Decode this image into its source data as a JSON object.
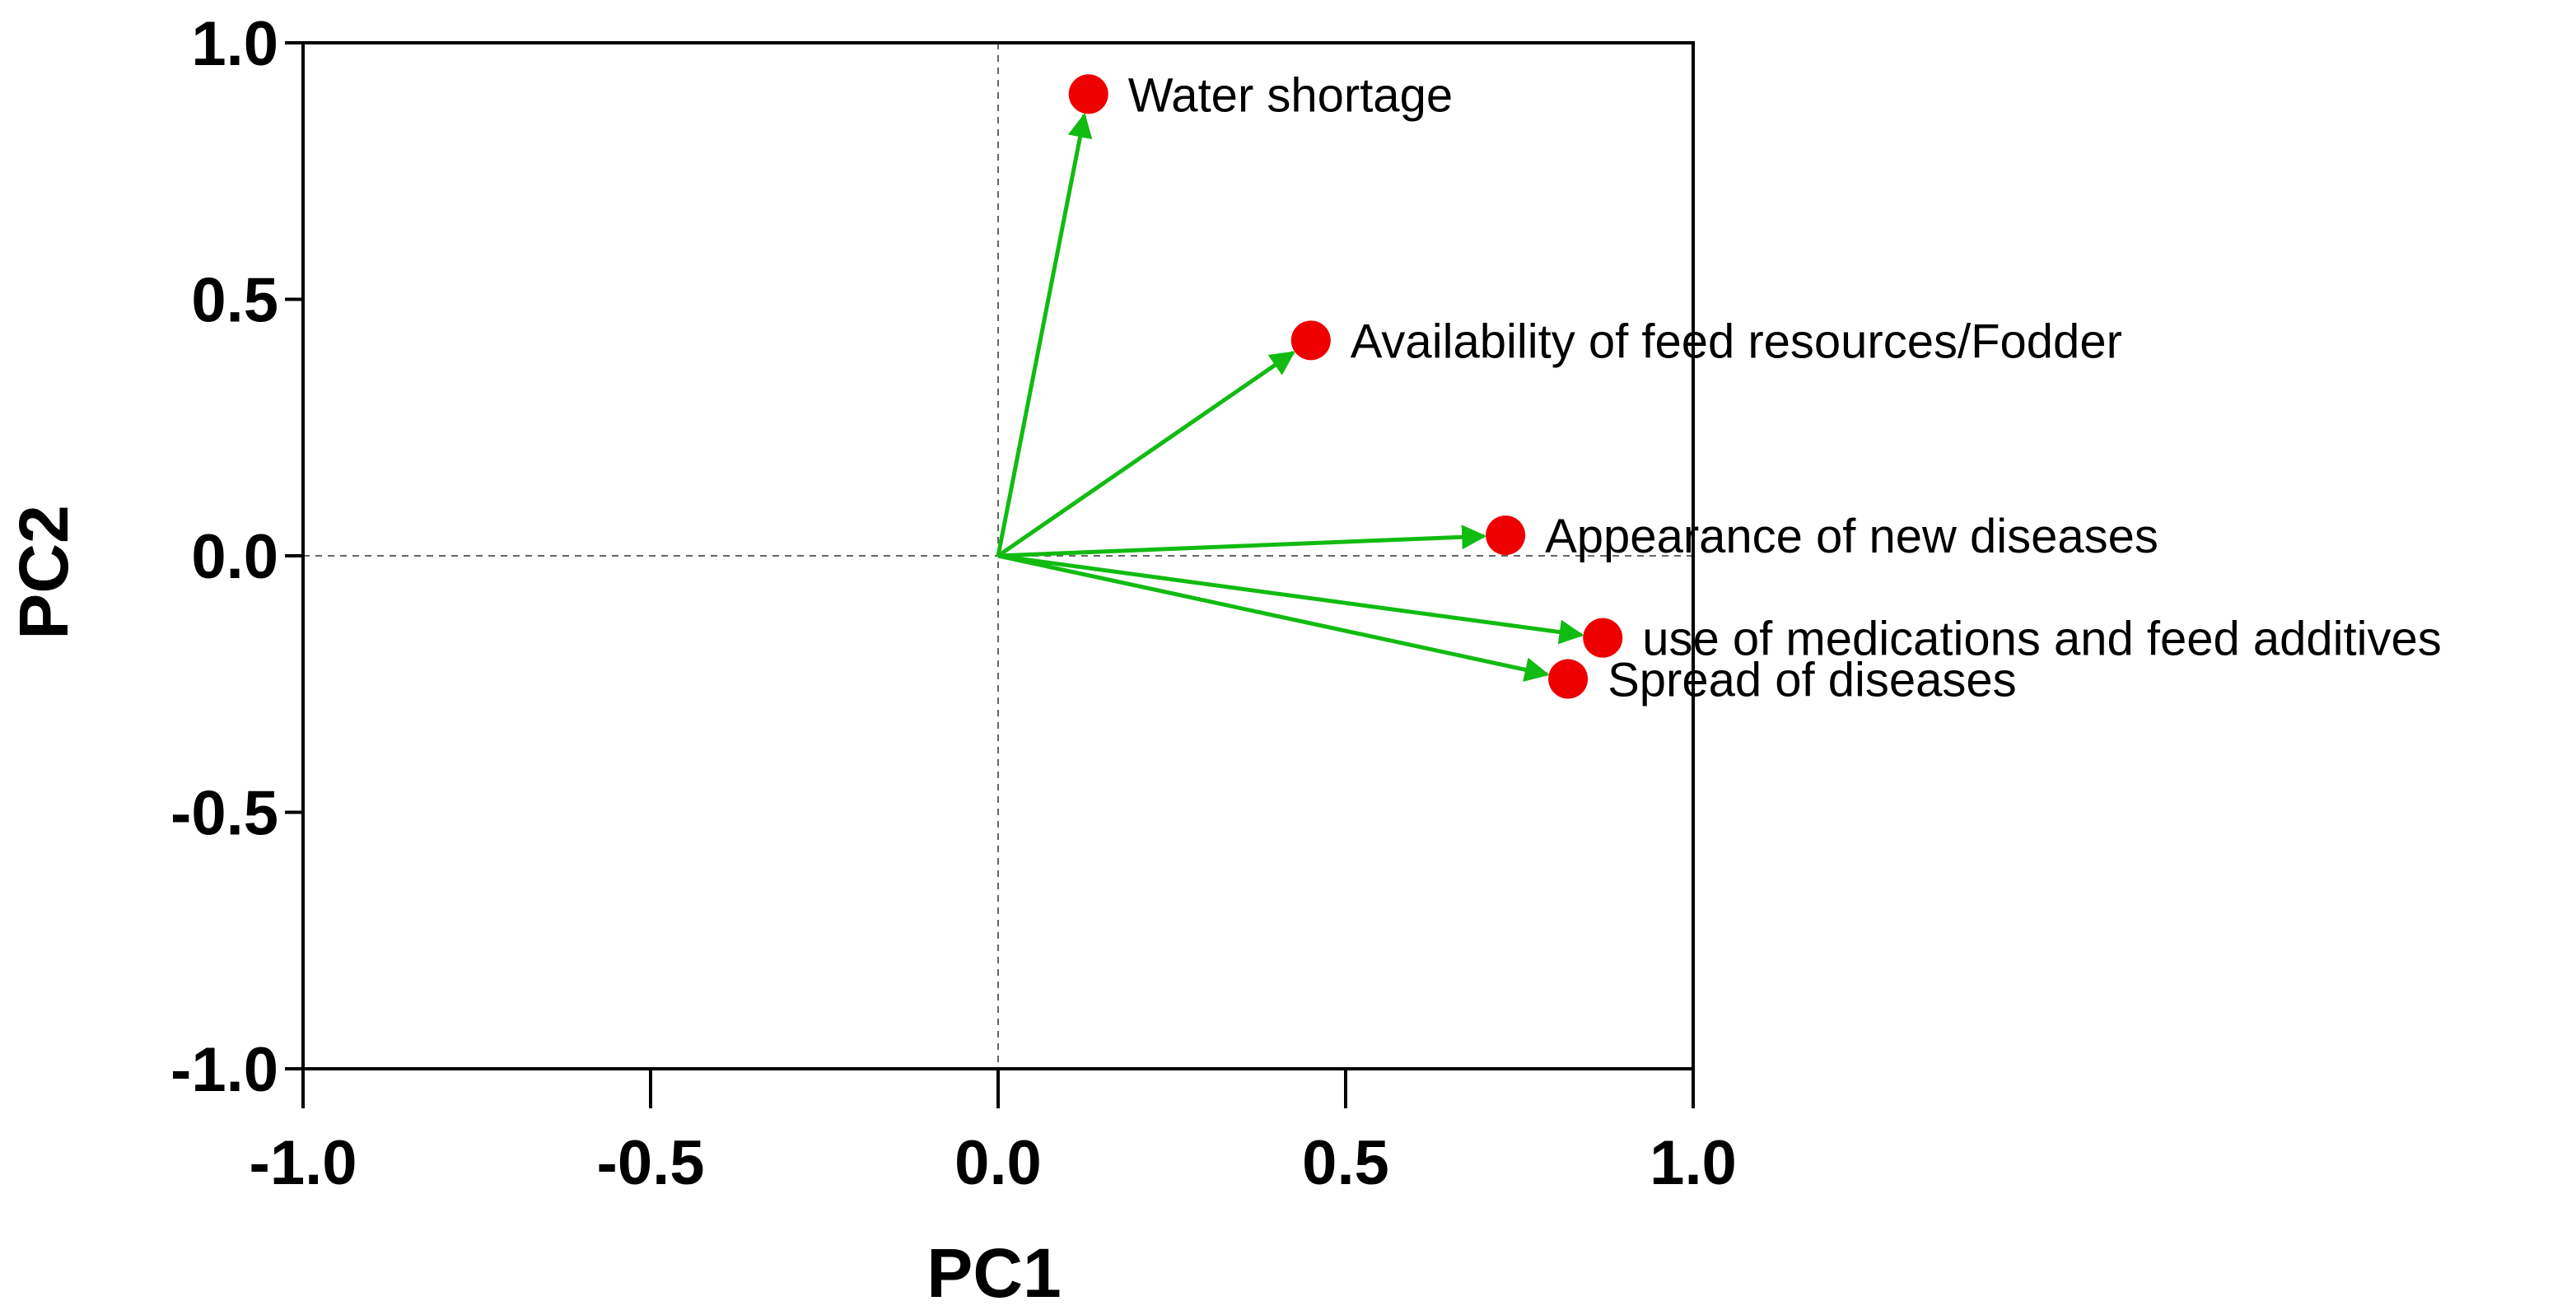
{
  "chart_data": {
    "type": "scatter",
    "subtype": "pca-loading-biplot",
    "title": "",
    "xlabel": "PC1",
    "ylabel": "PC2",
    "xlim": [
      -1.0,
      1.0
    ],
    "ylim": [
      -1.0,
      1.0
    ],
    "xticks": [
      "-1.0",
      "-0.5",
      "0.0",
      "0.5",
      "1.0"
    ],
    "yticks": [
      "1.0",
      "0.5",
      "0.0",
      "-0.5",
      "-1.0"
    ],
    "xtick_values": [
      -1.0,
      -0.5,
      0.0,
      0.5,
      1.0
    ],
    "ytick_values": [
      1.0,
      0.5,
      0.0,
      -0.5,
      -1.0
    ],
    "reference_lines": {
      "x": 0.0,
      "y": 0.0,
      "style": "dashed"
    },
    "grid": false,
    "points": [
      {
        "label": "Water shortage",
        "x": 0.13,
        "y": 0.9
      },
      {
        "label": "Availability of feed resources/Fodder",
        "x": 0.45,
        "y": 0.42
      },
      {
        "label": "Appearance of new diseases",
        "x": 0.73,
        "y": 0.04
      },
      {
        "label": "use of medications and feed additives",
        "x": 0.87,
        "y": -0.16
      },
      {
        "label": "Spread of diseases",
        "x": 0.82,
        "y": -0.24
      }
    ],
    "arrow_origin": {
      "x": 0.0,
      "y": 0.0
    },
    "colors": {
      "arrow": "#11bb11",
      "point": "#ee0000",
      "frame": "#000000",
      "reference": "#666666"
    }
  }
}
